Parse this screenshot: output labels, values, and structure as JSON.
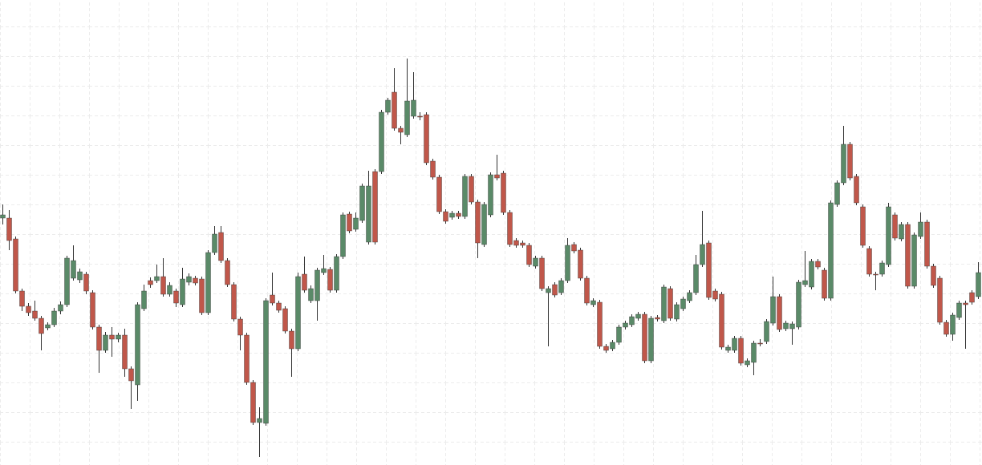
{
  "chart_data": {
    "type": "candlestick",
    "up_color": "#5a8a68",
    "down_color": "#c0574a",
    "wick_color": "#333333",
    "ylim": [
      0,
      580
    ],
    "grid": true,
    "open": [
      308,
      308,
      282,
      217,
      198,
      192,
      183,
      171,
      175,
      192,
      200,
      233,
      231,
      238,
      215,
      172,
      143,
      162,
      157,
      162,
      120,
      100,
      195,
      230,
      230,
      235,
      213,
      217,
      200,
      228,
      233,
      232,
      190,
      265,
      290,
      255,
      225,
      182,
      162,
      103,
      53,
      52,
      212,
      202,
      195,
      167,
      145,
      238,
      205,
      205,
      240,
      244,
      218,
      260,
      313,
      294,
      305,
      278,
      366,
      366,
      440,
      465,
      420,
      412,
      435,
      435,
      437,
      379,
      359,
      316,
      309,
      314,
      310,
      360,
      328,
      275,
      312,
      362,
      364,
      315,
      280,
      277,
      274,
      248,
      258,
      215,
      225,
      215,
      230,
      275,
      268,
      233,
      200,
      203,
      148,
      145,
      153,
      172,
      175,
      183,
      188,
      130,
      184,
      180,
      220,
      182,
      195,
      205,
      215,
      250,
      277,
      217,
      213,
      143,
      143,
      158,
      125,
      128,
      152,
      154,
      177,
      210,
      170,
      170,
      172,
      225,
      222,
      254,
      243,
      208,
      325,
      352,
      400,
      360,
      322,
      270,
      238,
      238,
      250,
      312,
      282,
      300,
      223,
      285,
      303,
      248,
      233,
      178,
      163,
      184,
      202,
      215,
      210
    ],
    "high": [
      325,
      318,
      285,
      220,
      202,
      205,
      186,
      178,
      196,
      204,
      261,
      274,
      245,
      241,
      218,
      175,
      166,
      172,
      165,
      170,
      123,
      203,
      225,
      234,
      250,
      258,
      228,
      220,
      246,
      239,
      236,
      235,
      268,
      298,
      298,
      258,
      228,
      185,
      165,
      106,
      72,
      208,
      240,
      205,
      198,
      170,
      240,
      260,
      224,
      246,
      262,
      247,
      263,
      315,
      316,
      315,
      351,
      367,
      369,
      443,
      458,
      495,
      423,
      507,
      490,
      440,
      440,
      382,
      362,
      319,
      317,
      317,
      363,
      363,
      331,
      328,
      365,
      387,
      367,
      318,
      283,
      280,
      277,
      261,
      261,
      223,
      228,
      233,
      283,
      278,
      271,
      236,
      208,
      206,
      151,
      156,
      175,
      180,
      188,
      191,
      191,
      186,
      187,
      225,
      223,
      203,
      210,
      218,
      262,
      317,
      280,
      220,
      216,
      150,
      161,
      161,
      133,
      155,
      157,
      182,
      235,
      213,
      180,
      179,
      231,
      267,
      257,
      257,
      246,
      330,
      355,
      423,
      403,
      363,
      325,
      273,
      241,
      255,
      327,
      315,
      303,
      303,
      290,
      315,
      306,
      251,
      236,
      181,
      190,
      205,
      205,
      218,
      253
    ],
    "low": [
      300,
      268,
      214,
      192,
      186,
      180,
      143,
      168,
      172,
      188,
      197,
      230,
      227,
      213,
      169,
      115,
      140,
      135,
      153,
      110,
      70,
      80,
      192,
      221,
      227,
      210,
      210,
      197,
      197,
      224,
      224,
      187,
      187,
      262,
      252,
      222,
      179,
      143,
      100,
      50,
      10,
      49,
      199,
      190,
      164,
      110,
      142,
      215,
      202,
      180,
      237,
      215,
      215,
      257,
      289,
      291,
      302,
      275,
      275,
      363,
      437,
      417,
      400,
      409,
      432,
      430,
      374,
      356,
      313,
      301,
      306,
      307,
      307,
      325,
      258,
      272,
      309,
      355,
      312,
      272,
      271,
      271,
      247,
      245,
      217,
      148,
      209,
      212,
      227,
      264,
      230,
      199,
      197,
      145,
      140,
      142,
      150,
      169,
      172,
      180,
      127,
      127,
      179,
      177,
      180,
      179,
      192,
      202,
      212,
      247,
      206,
      204,
      144,
      140,
      140,
      124,
      122,
      112,
      148,
      151,
      174,
      166,
      167,
      150,
      169,
      222,
      219,
      244,
      205,
      205,
      322,
      349,
      355,
      324,
      271,
      235,
      218,
      235,
      247,
      280,
      279,
      220,
      220,
      282,
      245,
      221,
      175,
      160,
      155,
      181,
      145,
      200,
      207
    ],
    "close": [
      312,
      280,
      217,
      198,
      190,
      183,
      164,
      175,
      192,
      200,
      258,
      255,
      241,
      217,
      172,
      143,
      162,
      157,
      162,
      120,
      105,
      200,
      217,
      225,
      235,
      213,
      224,
      202,
      232,
      235,
      227,
      190,
      265,
      288,
      255,
      225,
      182,
      162,
      103,
      53,
      58,
      205,
      202,
      193,
      167,
      145,
      235,
      218,
      220,
      243,
      245,
      218,
      260,
      312,
      292,
      308,
      348,
      348,
      278,
      440,
      455,
      420,
      415,
      454,
      455,
      434,
      377,
      359,
      316,
      304,
      314,
      310,
      360,
      328,
      277,
      325,
      362,
      358,
      315,
      275,
      274,
      274,
      250,
      258,
      220,
      220,
      212,
      230,
      274,
      267,
      233,
      202,
      205,
      148,
      143,
      153,
      172,
      177,
      185,
      188,
      130,
      183,
      182,
      222,
      183,
      200,
      207,
      215,
      250,
      275,
      209,
      207,
      147,
      147,
      158,
      127,
      130,
      152,
      151,
      179,
      210,
      169,
      177,
      176,
      228,
      230,
      254,
      247,
      208,
      327,
      352,
      400,
      358,
      327,
      274,
      238,
      237,
      252,
      322,
      283,
      300,
      223,
      287,
      303,
      248,
      224,
      178,
      163,
      187,
      202,
      200,
      203,
      240
    ]
  }
}
